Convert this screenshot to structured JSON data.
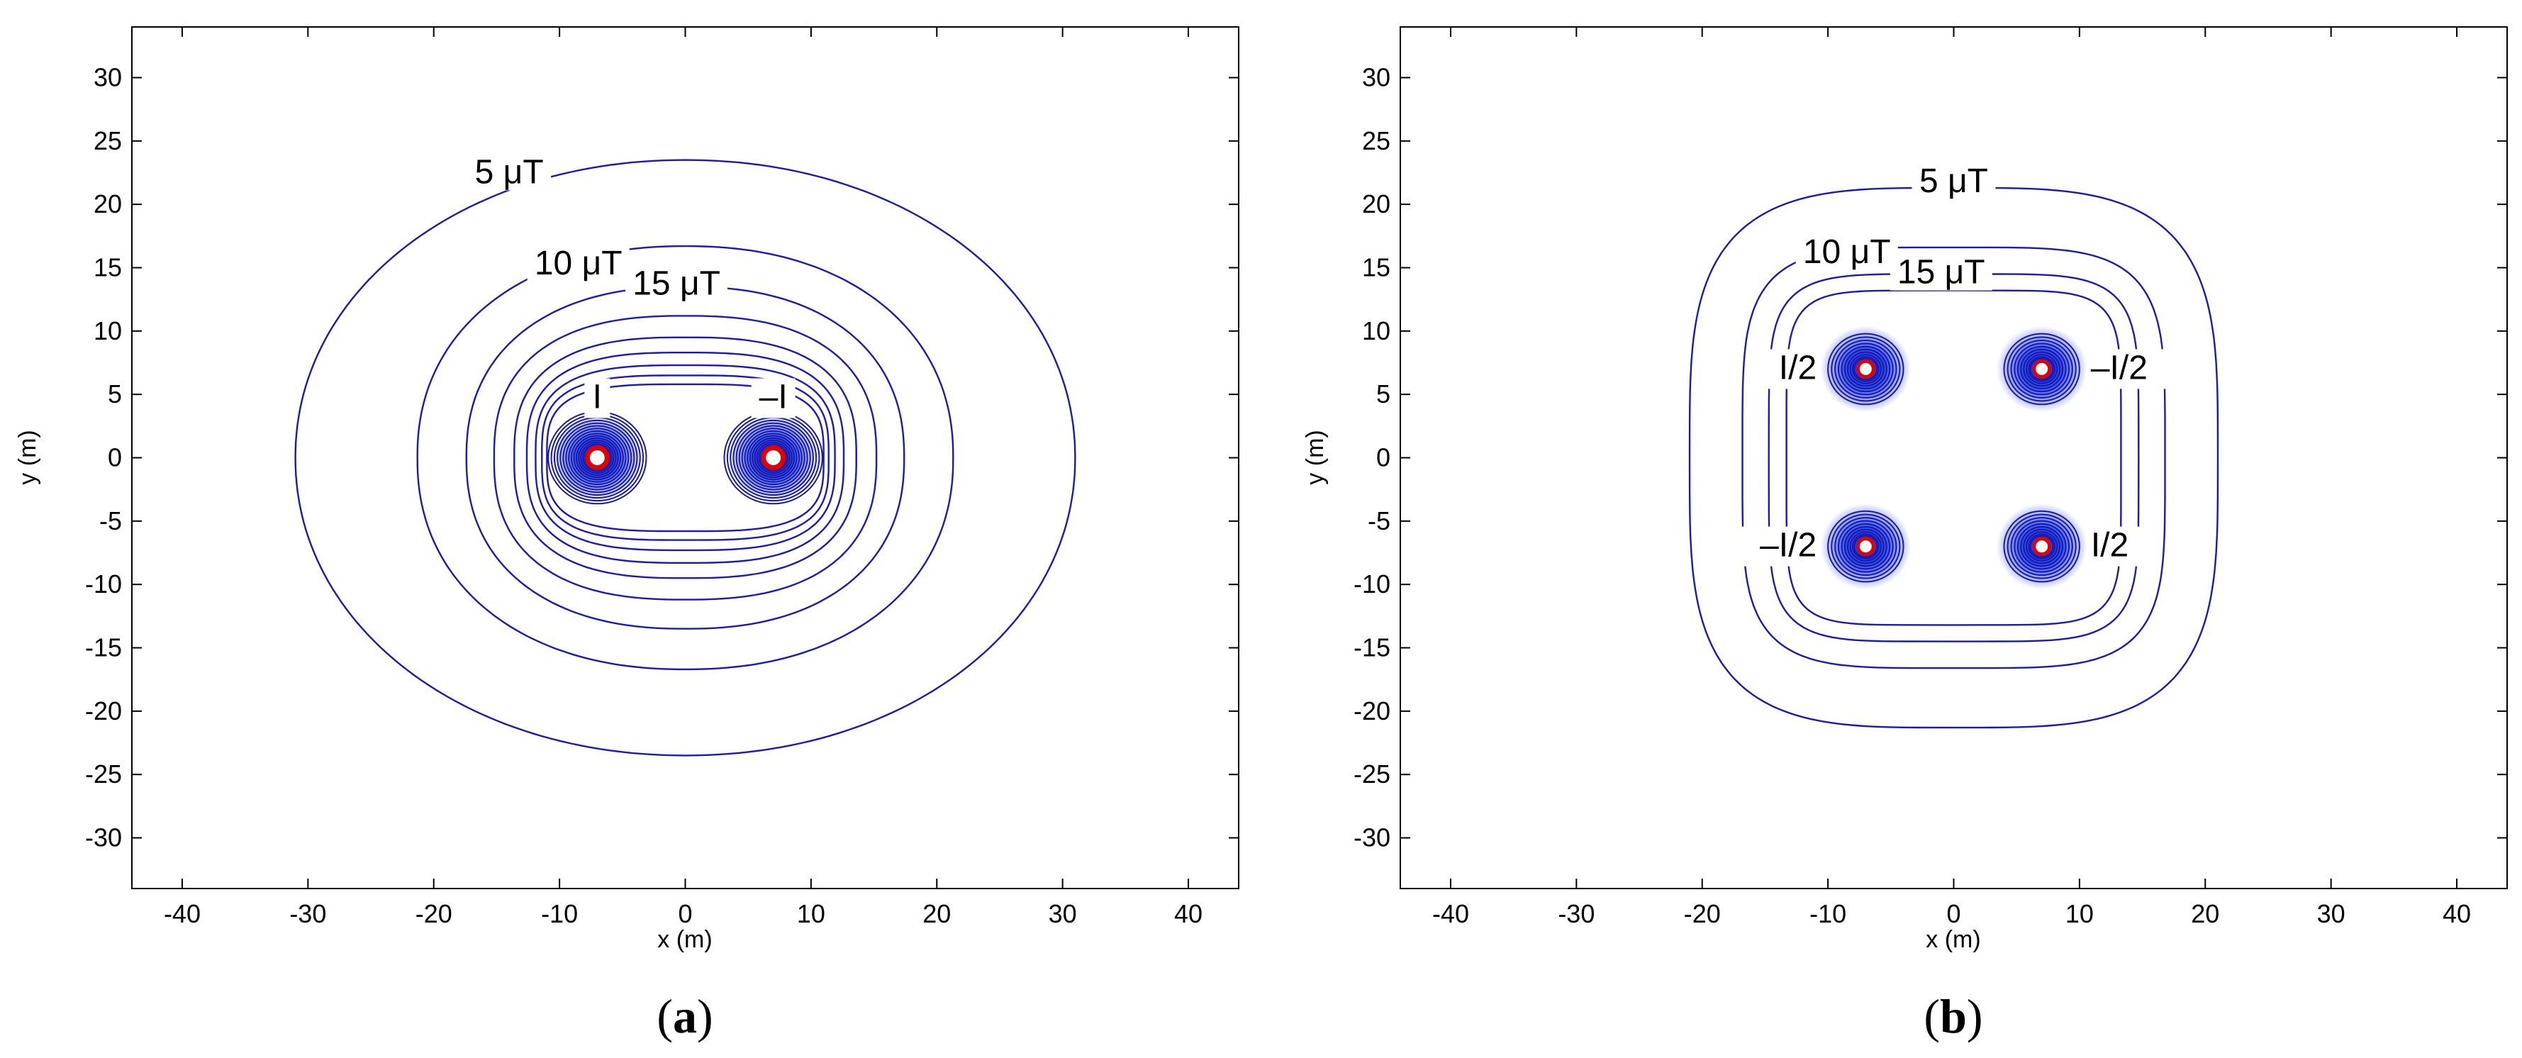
{
  "chart_data": [
    {
      "type": "contour",
      "panel": "(a)",
      "caption_letter": "a",
      "xlabel": "x (m)",
      "ylabel": "y (m)",
      "xlim": [
        -44,
        44
      ],
      "ylim": [
        -34,
        34
      ],
      "x_ticks": [
        -40,
        -30,
        -20,
        -10,
        0,
        10,
        20,
        30,
        40
      ],
      "y_ticks": [
        30,
        25,
        20,
        15,
        10,
        5,
        0,
        -5,
        -10,
        -15,
        -20,
        -25,
        -30
      ],
      "sources": [
        {
          "x": -7,
          "y": 0,
          "label": "I"
        },
        {
          "x": 7,
          "y": 0,
          "label": "–I"
        }
      ],
      "contour_labels": [
        {
          "text": "5 μT",
          "x": -14,
          "y": 22
        },
        {
          "text": "10 μT",
          "x": -8.5,
          "y": 14.8
        },
        {
          "text": "15 μT",
          "x": -0.7,
          "y": 13.2
        }
      ],
      "contours": [
        {
          "level": "5 μT",
          "rx": 31,
          "ry": 23.5,
          "n": 2.05
        },
        {
          "level": "10 μT",
          "rx": 21.3,
          "ry": 16.7,
          "n": 2.2
        },
        {
          "level": "15 μT",
          "rx": 17.4,
          "ry": 13.5,
          "n": 2.3
        },
        {
          "rx": 15.2,
          "ry": 11.2,
          "n": 2.5
        },
        {
          "rx": 13.6,
          "ry": 9.5,
          "n": 2.7
        },
        {
          "rx": 12.6,
          "ry": 8.3,
          "n": 2.9
        },
        {
          "rx": 11.9,
          "ry": 7.3,
          "n": 3.1
        },
        {
          "rx": 11.4,
          "ry": 6.5,
          "n": 3.3
        },
        {
          "rx": 11.0,
          "ry": 5.8,
          "n": 3.4
        }
      ]
    },
    {
      "type": "contour",
      "panel": "(b)",
      "caption_letter": "b",
      "xlabel": "x (m)",
      "ylabel": "y (m)",
      "xlim": [
        -44,
        44
      ],
      "ylim": [
        -34,
        34
      ],
      "x_ticks": [
        -40,
        -30,
        -20,
        -10,
        0,
        10,
        20,
        30,
        40
      ],
      "y_ticks": [
        30,
        25,
        20,
        15,
        10,
        5,
        0,
        -5,
        -10,
        -15,
        -20,
        -25,
        -30
      ],
      "sources": [
        {
          "x": -7,
          "y": 7,
          "label": "I/2"
        },
        {
          "x": 7,
          "y": 7,
          "label": "–I/2"
        },
        {
          "x": -7,
          "y": -7,
          "label": "–I/2"
        },
        {
          "x": 7,
          "y": -7,
          "label": "I/2"
        }
      ],
      "contour_labels": [
        {
          "text": "5 μT",
          "x": 0,
          "y": 21.3
        },
        {
          "text": "10 μT",
          "x": -8.5,
          "y": 15.7
        },
        {
          "text": "15 μT",
          "x": -1,
          "y": 14.1
        }
      ],
      "contours": [
        {
          "level": "5 μT",
          "rx": 21,
          "ry": 21.3,
          "n": 3.6
        },
        {
          "level": "10 μT",
          "rx": 16.8,
          "ry": 16.6,
          "n": 4.4
        },
        {
          "level": "15 μT",
          "rx": 14.7,
          "ry": 14.5,
          "n": 5.2
        },
        {
          "rx": 13.3,
          "ry": 13.2,
          "n": 6.0
        }
      ]
    }
  ]
}
